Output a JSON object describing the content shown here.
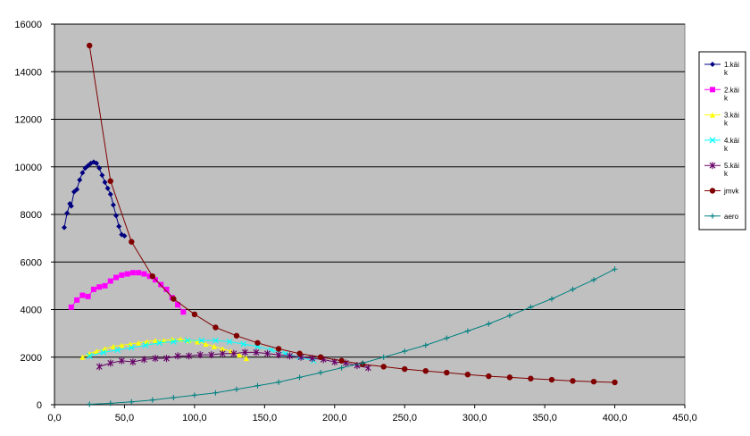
{
  "chart_data": {
    "type": "line",
    "xlim": [
      0,
      450
    ],
    "ylim": [
      0,
      16000
    ],
    "x_ticks": [
      0,
      50,
      100,
      150,
      200,
      250,
      300,
      350,
      400,
      450
    ],
    "x_tick_labels": [
      "0,0",
      "50,0",
      "100,0",
      "150,0",
      "200,0",
      "250,0",
      "300,0",
      "350,0",
      "400,0",
      "450,0"
    ],
    "y_ticks": [
      0,
      2000,
      4000,
      6000,
      8000,
      10000,
      12000,
      14000,
      16000
    ],
    "y_tick_labels": [
      "0",
      "2000",
      "4000",
      "6000",
      "8000",
      "10000",
      "12000",
      "14000",
      "16000"
    ],
    "grid": "horizontal",
    "plot_background": "#c0c0c0",
    "legend_position": "right",
    "series": [
      {
        "name": "1.käik",
        "legend_label": [
          "1.käi",
          "k"
        ],
        "color": "#000080",
        "marker": "diamond",
        "x": [
          7,
          9,
          11,
          12,
          14,
          16,
          18,
          20,
          22,
          24,
          26,
          28,
          30,
          32,
          34,
          36,
          38,
          40,
          42,
          44,
          46,
          48,
          50
        ],
        "y": [
          7450,
          8050,
          8450,
          8350,
          8950,
          9050,
          9450,
          9750,
          9950,
          10050,
          10150,
          10200,
          10150,
          9950,
          9650,
          9350,
          9100,
          8850,
          8400,
          7950,
          7500,
          7150,
          7100
        ]
      },
      {
        "name": "2.käik",
        "legend_label": [
          "2.käi",
          "k"
        ],
        "color": "#ff00ff",
        "marker": "square",
        "x": [
          12,
          16,
          20,
          24,
          28,
          32,
          36,
          40,
          44,
          48,
          52,
          56,
          60,
          64,
          68,
          72,
          76,
          80,
          84,
          88,
          92
        ],
        "y": [
          4100,
          4400,
          4600,
          4550,
          4850,
          4950,
          5000,
          5200,
          5350,
          5450,
          5500,
          5550,
          5550,
          5500,
          5400,
          5250,
          5050,
          4850,
          4500,
          4200,
          3900
        ]
      },
      {
        "name": "3.käik",
        "legend_label": [
          "3.käi",
          "k"
        ],
        "color": "#ffff00",
        "marker": "triangle",
        "x": [
          20,
          25,
          30,
          36,
          42,
          48,
          54,
          60,
          66,
          72,
          78,
          84,
          90,
          96,
          102,
          108,
          114,
          120,
          126,
          132,
          137
        ],
        "y": [
          2000,
          2150,
          2250,
          2350,
          2450,
          2500,
          2550,
          2600,
          2650,
          2700,
          2700,
          2750,
          2750,
          2700,
          2650,
          2550,
          2450,
          2350,
          2250,
          2100,
          1950
        ]
      },
      {
        "name": "4.käik",
        "legend_label": [
          "4.käi",
          "k"
        ],
        "color": "#00ffff",
        "marker": "x",
        "x": [
          25,
          35,
          45,
          55,
          65,
          75,
          85,
          95,
          105,
          115,
          125,
          135,
          145,
          155,
          165,
          175,
          185
        ],
        "y": [
          2050,
          2200,
          2300,
          2400,
          2500,
          2600,
          2650,
          2700,
          2700,
          2700,
          2650,
          2550,
          2450,
          2300,
          2150,
          2000,
          1850
        ]
      },
      {
        "name": "5.käik",
        "legend_label": [
          "5.käi",
          "k"
        ],
        "color": "#660066",
        "marker": "star",
        "x": [
          32,
          40,
          48,
          56,
          64,
          72,
          80,
          88,
          96,
          104,
          112,
          120,
          128,
          136,
          144,
          152,
          160,
          168,
          176,
          184,
          192,
          200,
          208,
          216,
          224
        ],
        "y": [
          1600,
          1750,
          1850,
          1800,
          1900,
          1950,
          1950,
          2050,
          2050,
          2100,
          2100,
          2150,
          2150,
          2200,
          2200,
          2150,
          2100,
          2050,
          2000,
          1950,
          1900,
          1800,
          1750,
          1650,
          1550
        ]
      },
      {
        "name": "jmvk",
        "legend_label": [
          "jmvk"
        ],
        "color": "#800000",
        "marker": "circle",
        "x": [
          25,
          40,
          55,
          70,
          85,
          100,
          115,
          130,
          145,
          160,
          175,
          190,
          205,
          220,
          235,
          250,
          265,
          280,
          295,
          310,
          325,
          340,
          355,
          370,
          385,
          400
        ],
        "y": [
          15100,
          9400,
          6850,
          5400,
          4450,
          3800,
          3250,
          2900,
          2600,
          2350,
          2150,
          2000,
          1850,
          1700,
          1600,
          1500,
          1420,
          1350,
          1270,
          1200,
          1150,
          1100,
          1050,
          1000,
          970,
          940
        ]
      },
      {
        "name": "aero",
        "legend_label": [
          "aero"
        ],
        "color": "#008080",
        "marker": "plus",
        "x": [
          25,
          40,
          55,
          70,
          85,
          100,
          115,
          130,
          145,
          160,
          175,
          190,
          205,
          220,
          235,
          250,
          265,
          280,
          295,
          310,
          325,
          340,
          355,
          370,
          385,
          400
        ],
        "y": [
          20,
          60,
          120,
          200,
          300,
          400,
          500,
          650,
          800,
          950,
          1150,
          1350,
          1550,
          1750,
          2000,
          2250,
          2500,
          2800,
          3100,
          3400,
          3750,
          4100,
          4450,
          4850,
          5250,
          5700
        ]
      }
    ]
  }
}
